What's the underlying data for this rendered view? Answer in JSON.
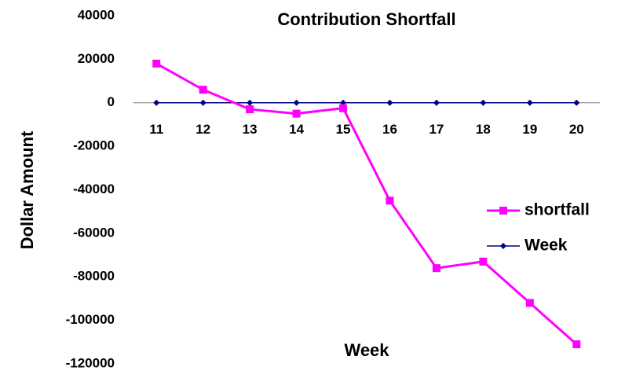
{
  "chart_data": {
    "type": "line",
    "title": "Contribution Shortfall",
    "x_label": "Week",
    "y_label": "Dollar Amount",
    "categories": [
      11,
      12,
      13,
      14,
      15,
      16,
      17,
      18,
      19,
      20
    ],
    "series": [
      {
        "name": "shortfall",
        "color": "#ff00ff",
        "marker": "square",
        "values": [
          18000,
          6000,
          -3000,
          -5000,
          -2500,
          -45000,
          -76000,
          -73000,
          -92000,
          -111000
        ]
      },
      {
        "name": "Week",
        "color": "#000080",
        "marker": "diamond",
        "values": [
          0,
          0,
          0,
          0,
          0,
          0,
          0,
          0,
          0,
          0
        ]
      }
    ],
    "ylim": [
      -120000,
      40000
    ],
    "yticks": [
      40000,
      20000,
      0,
      -20000,
      -40000,
      -60000,
      -80000,
      -100000,
      -120000
    ],
    "grid": false,
    "legend": "right"
  }
}
